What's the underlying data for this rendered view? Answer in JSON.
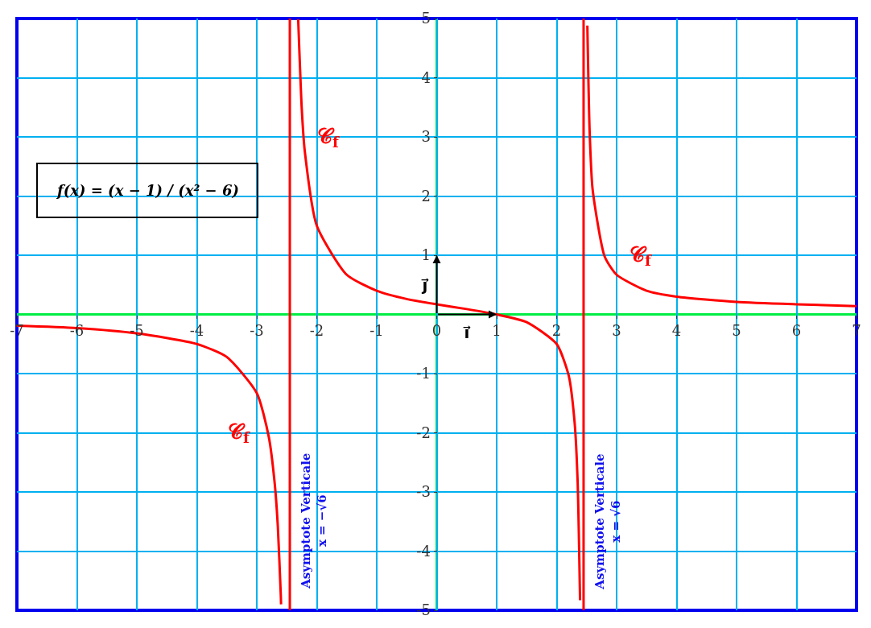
{
  "chart_data": {
    "type": "line",
    "xlim": [
      -7,
      7
    ],
    "ylim": [
      -5,
      5
    ],
    "xticks": [
      -7,
      -6,
      -5,
      -4,
      -3,
      -2,
      -1,
      {
        "value": 0,
        "label": "0"
      },
      1,
      2,
      3,
      4,
      5,
      6,
      7
    ],
    "yticks": [
      -5,
      -4,
      -3,
      -2,
      -1,
      1,
      2,
      3,
      4,
      5
    ],
    "grid": true,
    "marker": "none",
    "line_style": "solid",
    "series": [
      {
        "color": "#ff0000",
        "x": [
          -7,
          -6,
          -5,
          -4,
          -3.5,
          -3,
          -2.8,
          -2.7,
          -2.65,
          -2.6,
          -2.595
        ],
        "values": [
          -0.19,
          -0.23,
          -0.32,
          -0.5,
          -0.72,
          -1.33,
          -2.07,
          -2.87,
          -3.57,
          -4.74,
          -4.9
        ]
      },
      {
        "color": "#ff0000",
        "x": [
          -2.31,
          -2.25,
          -2.2,
          -2,
          -1.5,
          -1,
          -0.5,
          0,
          0.5,
          1,
          1.5,
          2,
          2.2,
          2.3,
          2.35,
          2.39
        ],
        "values": [
          4.99,
          3.47,
          2.76,
          1.5,
          0.67,
          0.4,
          0.26,
          0.17,
          0.09,
          0,
          -0.13,
          -0.5,
          -1.03,
          -1.83,
          -2.83,
          -4.83
        ]
      },
      {
        "color": "#ff0000",
        "x": [
          2.512,
          2.55,
          2.6,
          2.8,
          3,
          3.5,
          4,
          5,
          6,
          7
        ],
        "values": [
          4.88,
          3.09,
          2.11,
          0.98,
          0.67,
          0.4,
          0.3,
          0.21,
          0.17,
          0.14
        ]
      }
    ],
    "ref_lines": [
      {
        "axis": "x",
        "value": -2.449,
        "label": "Asymptote Verticale\nx = −√6",
        "color": "#ff0000"
      },
      {
        "axis": "x",
        "value": 2.449,
        "label": "Asymptote Verticale\nx = √6",
        "color": "#ff0000"
      }
    ],
    "annotations": [
      "𝒞$_{f}$",
      "𝒞$_{f}$",
      "𝒞$_{f}$",
      "f(x) = (x − 1) / (x² − 6)",
      "i⃗",
      "j⃗"
    ]
  }
}
